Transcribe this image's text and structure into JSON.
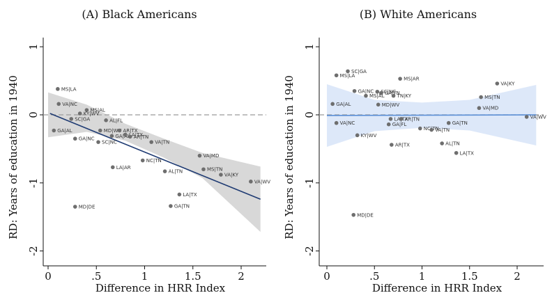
{
  "chart_data": [
    {
      "type": "scatter",
      "title": "(A) Black Americans",
      "xlabel": "Difference in HRR Index",
      "ylabel": "RD: Years of education in 1940",
      "xlim": [
        0,
        2.25
      ],
      "ylim": [
        -2.1,
        1.2
      ],
      "xticks": [
        {
          "v": 0,
          "label": "0"
        },
        {
          "v": 0.5,
          "label": ".5"
        },
        {
          "v": 1,
          "label": "1"
        },
        {
          "v": 1.5,
          "label": "1.5"
        },
        {
          "v": 2,
          "label": "2"
        }
      ],
      "yticks": [
        {
          "v": 1,
          "label": "1"
        },
        {
          "v": 0,
          "label": "0"
        },
        {
          "v": -1,
          "label": "-1"
        },
        {
          "v": -2,
          "label": "-2"
        }
      ],
      "zero_line": true,
      "fit_line": {
        "x": [
          0.02,
          2.2
        ],
        "y": [
          0.02,
          -1.24
        ]
      },
      "ci_band": {
        "x": [
          0.0,
          0.4,
          0.8,
          1.2,
          1.6,
          2.2
        ],
        "lower": [
          -0.33,
          -0.25,
          -0.38,
          -0.63,
          -0.93,
          -1.72
        ],
        "upper": [
          0.33,
          0.15,
          -0.13,
          -0.35,
          -0.56,
          -0.76
        ]
      },
      "color_points": "#6e6e6e",
      "color_fit": "#1f3b73",
      "color_band": "#d4d4d4",
      "points": [
        {
          "x": 0.1,
          "y": 0.38,
          "label": "MS|LA"
        },
        {
          "x": 0.11,
          "y": 0.16,
          "label": "VA|NC"
        },
        {
          "x": 0.4,
          "y": 0.07,
          "label": "MS|AL"
        },
        {
          "x": 0.33,
          "y": 0.02,
          "label": "KY|WV"
        },
        {
          "x": 0.24,
          "y": -0.06,
          "label": "SC|GA"
        },
        {
          "x": 0.6,
          "y": -0.08,
          "label": "AL|FL"
        },
        {
          "x": 0.06,
          "y": -0.23,
          "label": "GA|AL"
        },
        {
          "x": 0.54,
          "y": -0.23,
          "label": "MD|WV"
        },
        {
          "x": 0.28,
          "y": -0.35,
          "label": "GA|NC"
        },
        {
          "x": 0.52,
          "y": -0.4,
          "label": "SC|NC"
        },
        {
          "x": 0.66,
          "y": -0.31,
          "label": "GA|AL"
        },
        {
          "x": 0.74,
          "y": -0.23,
          "label": "AR|TX"
        },
        {
          "x": 0.8,
          "y": -0.29,
          "label": "LA|TX"
        },
        {
          "x": 0.85,
          "y": -0.32,
          "label": "AR|TN"
        },
        {
          "x": 1.07,
          "y": -0.4,
          "label": "VA|TN"
        },
        {
          "x": 0.67,
          "y": -0.77,
          "label": "LA|AR"
        },
        {
          "x": 0.98,
          "y": -0.67,
          "label": "NC|TN"
        },
        {
          "x": 1.21,
          "y": -0.83,
          "label": "AL|TN"
        },
        {
          "x": 1.57,
          "y": -0.6,
          "label": "VA|MD"
        },
        {
          "x": 1.61,
          "y": -0.8,
          "label": "MS|TN"
        },
        {
          "x": 1.79,
          "y": -0.88,
          "label": "VA|KY"
        },
        {
          "x": 2.1,
          "y": -0.98,
          "label": "VA|WV"
        },
        {
          "x": 1.36,
          "y": -1.17,
          "label": "LA|TX"
        },
        {
          "x": 0.28,
          "y": -1.35,
          "label": "MD|DE"
        },
        {
          "x": 1.27,
          "y": -1.34,
          "label": "GA|TN"
        }
      ]
    },
    {
      "type": "scatter",
      "title": "(B) White Americans",
      "xlabel": "Difference in HRR Index",
      "ylabel": "RD: Years of education in 1940",
      "xlim": [
        0,
        2.25
      ],
      "ylim": [
        -2.1,
        1.2
      ],
      "xticks": [
        {
          "v": 0,
          "label": "0"
        },
        {
          "v": 0.5,
          "label": ".5"
        },
        {
          "v": 1,
          "label": "1"
        },
        {
          "v": 1.5,
          "label": "1.5"
        },
        {
          "v": 2,
          "label": "2"
        }
      ],
      "yticks": [
        {
          "v": 1,
          "label": "1"
        },
        {
          "v": 0,
          "label": "0"
        },
        {
          "v": -1,
          "label": "-1"
        },
        {
          "v": -2,
          "label": "-2"
        }
      ],
      "zero_line": true,
      "fit_line": {
        "x": [
          0.0,
          2.2
        ],
        "y": [
          -0.01,
          0.0
        ]
      },
      "ci_band": {
        "x": [
          0.0,
          0.5,
          1.0,
          1.5,
          2.2
        ],
        "lower": [
          -0.47,
          -0.24,
          -0.19,
          -0.23,
          -0.45
        ],
        "upper": [
          0.45,
          0.22,
          0.18,
          0.22,
          0.44
        ]
      },
      "color_points": "#6e6e6e",
      "color_fit": "#5b8fd6",
      "color_band": "#d9e5f8",
      "points": [
        {
          "x": 0.1,
          "y": 0.58,
          "label": "MS|LA"
        },
        {
          "x": 0.22,
          "y": 0.64,
          "label": "SC|GA"
        },
        {
          "x": 0.77,
          "y": 0.53,
          "label": "MS|AR"
        },
        {
          "x": 1.79,
          "y": 0.46,
          "label": "VA|KY"
        },
        {
          "x": 0.29,
          "y": 0.35,
          "label": "GA|NC"
        },
        {
          "x": 0.53,
          "y": 0.34,
          "label": "SC|NC"
        },
        {
          "x": 0.57,
          "y": 0.32,
          "label": "GA|TN"
        },
        {
          "x": 0.41,
          "y": 0.28,
          "label": "MS|AL"
        },
        {
          "x": 0.7,
          "y": 0.28,
          "label": "TN|KY"
        },
        {
          "x": 1.62,
          "y": 0.26,
          "label": "MS|TN"
        },
        {
          "x": 0.06,
          "y": 0.16,
          "label": "GA|AL"
        },
        {
          "x": 0.54,
          "y": 0.15,
          "label": "MD|WV"
        },
        {
          "x": 1.6,
          "y": 0.1,
          "label": "VA|MD"
        },
        {
          "x": 2.1,
          "y": -0.03,
          "label": "VA|WV"
        },
        {
          "x": 0.1,
          "y": -0.12,
          "label": "VA|NC"
        },
        {
          "x": 0.67,
          "y": -0.06,
          "label": "LA|TX"
        },
        {
          "x": 0.78,
          "y": -0.06,
          "label": "AR|TN"
        },
        {
          "x": 0.65,
          "y": -0.14,
          "label": "GA|FL"
        },
        {
          "x": 1.28,
          "y": -0.12,
          "label": "GA|TN"
        },
        {
          "x": 0.98,
          "y": -0.2,
          "label": "NC|TN"
        },
        {
          "x": 1.1,
          "y": -0.22,
          "label": "VA|TN"
        },
        {
          "x": 0.32,
          "y": -0.3,
          "label": "KY|WV"
        },
        {
          "x": 0.68,
          "y": -0.44,
          "label": "AR|TX"
        },
        {
          "x": 1.21,
          "y": -0.42,
          "label": "AL|TN"
        },
        {
          "x": 1.36,
          "y": -0.56,
          "label": "LA|TX"
        },
        {
          "x": 0.28,
          "y": -1.47,
          "label": "MD|DE"
        }
      ]
    }
  ]
}
